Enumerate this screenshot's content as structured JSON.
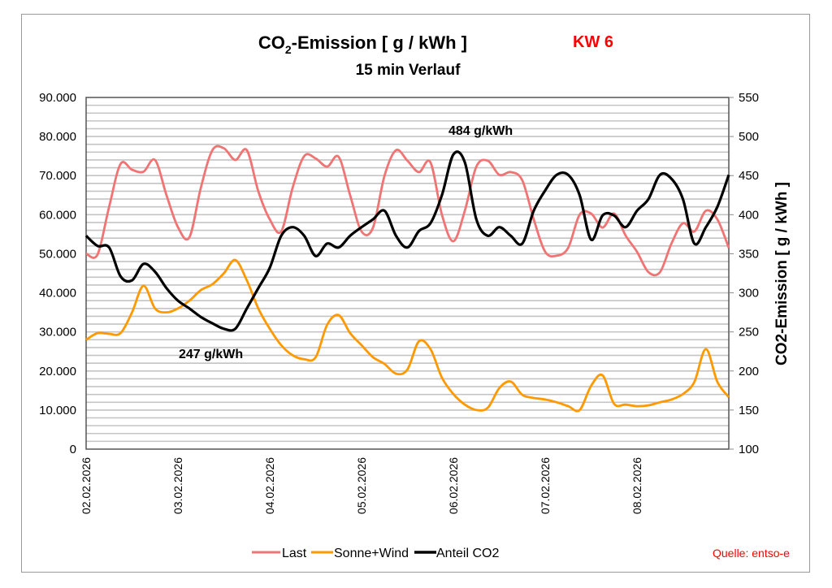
{
  "chart_data": {
    "type": "line",
    "title": "CO2-Emission [ g / kWh ]",
    "title_parts": {
      "pre": "CO",
      "sub": "2",
      "post": "-Emission [ g / kWh ]"
    },
    "week_label": "KW 6",
    "subtitle": "15 min Verlauf",
    "x_categories": [
      "02.02.2026",
      "03.02.2026",
      "04.02.2026",
      "05.02.2026",
      "06.02.2026",
      "07.02.2026",
      "08.02.2026"
    ],
    "x_range_days": [
      0,
      7
    ],
    "sample_step_hours": 3,
    "y_left": {
      "label": "",
      "range": [
        0,
        90000
      ],
      "ticks": [
        0,
        10000,
        20000,
        30000,
        40000,
        50000,
        60000,
        70000,
        80000,
        90000
      ],
      "tick_labels": [
        "0",
        "10.000",
        "20.000",
        "30.000",
        "40.000",
        "50.000",
        "60.000",
        "70.000",
        "80.000",
        "90.000"
      ],
      "minor_grid_step": 2000
    },
    "y_right": {
      "label": "CO2-Emission [ g / kWh ]",
      "range": [
        100,
        550
      ],
      "ticks": [
        100,
        150,
        200,
        250,
        300,
        350,
        400,
        450,
        500,
        550
      ],
      "tick_labels": [
        "100",
        "150",
        "200",
        "250",
        "300",
        "350",
        "400",
        "450",
        "500",
        "550"
      ]
    },
    "grid": true,
    "legend_position": "bottom",
    "series": [
      {
        "name": "Last",
        "axis": "left",
        "color": "#f07474",
        "values": [
          50000,
          49800,
          62000,
          73000,
          71500,
          71000,
          74000,
          65000,
          56800,
          54200,
          67000,
          76500,
          77000,
          74000,
          76500,
          66000,
          58800,
          55700,
          67000,
          75000,
          74400,
          72300,
          74800,
          65000,
          55700,
          56700,
          70000,
          76500,
          73800,
          70900,
          73400,
          60000,
          53200,
          61000,
          72300,
          73800,
          70200,
          70900,
          68800,
          58800,
          50500,
          49500,
          51500,
          60000,
          60300,
          56700,
          60300,
          54700,
          50500,
          45300,
          45300,
          52600,
          57800,
          55700,
          61000,
          58800,
          51500
        ]
      },
      {
        "name": "Sonne+Wind",
        "axis": "left",
        "color": "#ff9900",
        "values": [
          28000,
          29700,
          29500,
          29700,
          35000,
          41800,
          36000,
          35000,
          36000,
          38000,
          40700,
          42200,
          45000,
          48400,
          43200,
          36000,
          30800,
          26600,
          24000,
          23000,
          23500,
          31800,
          34300,
          29700,
          26600,
          23500,
          21800,
          19300,
          20400,
          27600,
          25600,
          18300,
          14100,
          11400,
          10000,
          10600,
          15600,
          17300,
          13900,
          13100,
          12700,
          12000,
          11000,
          10000,
          16200,
          18900,
          11600,
          11400,
          11000,
          11200,
          12000,
          12700,
          14100,
          17200,
          25600,
          17200,
          13300
        ]
      },
      {
        "name": "Anteil CO2",
        "axis": "right",
        "color": "#000000",
        "values": [
          373,
          360,
          358,
          321,
          316,
          337,
          327,
          306,
          290,
          280,
          269,
          261,
          254,
          254,
          280,
          306,
          332,
          373,
          384,
          373,
          347,
          363,
          358,
          373,
          384,
          394,
          405,
          373,
          358,
          379,
          389,
          425,
          477,
          467,
          394,
          373,
          384,
          373,
          363,
          405,
          431,
          451,
          451,
          425,
          368,
          399,
          399,
          384,
          405,
          420,
          451,
          446,
          420,
          363,
          384,
          410,
          451
        ]
      }
    ],
    "annotations": [
      {
        "text": "484 g/kWh",
        "series": "Anteil CO2",
        "kind": "max",
        "value": 484
      },
      {
        "text": "247 g/kWh",
        "series": "Anteil CO2",
        "kind": "min",
        "value": 247
      }
    ],
    "source": "Quelle: entso-e"
  }
}
